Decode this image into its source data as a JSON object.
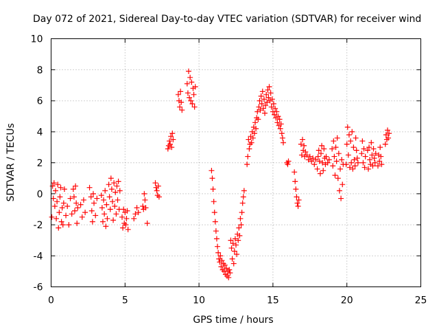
{
  "chart_data": {
    "type": "scatter",
    "title": "Day 072 of 2021, Sidereal Day-to-day VTEC variation (SDTVAR) for receiver wind",
    "xlabel": "GPS time / hours",
    "ylabel": "SDTVAR / TECUs",
    "xlim": [
      0,
      25
    ],
    "ylim": [
      -6,
      10
    ],
    "xticks": [
      "0",
      "5",
      "10",
      "15",
      "20",
      "25"
    ],
    "yticks": [
      "-6",
      "-4",
      "-2",
      "0",
      "2",
      "4",
      "6",
      "8",
      "10"
    ],
    "grid": true,
    "marker": "+",
    "series_color": "#ff0000",
    "series": [
      {
        "name": "SDTVAR",
        "points": [
          [
            0.05,
            -1.5
          ],
          [
            0.1,
            0.5
          ],
          [
            0.15,
            -0.3
          ],
          [
            0.2,
            0.7
          ],
          [
            0.25,
            -0.8
          ],
          [
            0.3,
            0.2
          ],
          [
            0.35,
            -1.6
          ],
          [
            0.4,
            -0.5
          ],
          [
            0.45,
            0.6
          ],
          [
            0.5,
            -2.2
          ],
          [
            0.55,
            -1.2
          ],
          [
            0.6,
            -0.2
          ],
          [
            0.65,
            0.4
          ],
          [
            0.7,
            -1.8
          ],
          [
            0.75,
            -0.9
          ],
          [
            0.8,
            -2.0
          ],
          [
            0.85,
            -0.6
          ],
          [
            0.9,
            0.3
          ],
          [
            1.0,
            -1.4
          ],
          [
            1.1,
            -0.8
          ],
          [
            1.2,
            -2.0
          ],
          [
            1.3,
            -0.3
          ],
          [
            1.4,
            -1.3
          ],
          [
            1.5,
            0.3
          ],
          [
            1.55,
            -0.2
          ],
          [
            1.6,
            -1.1
          ],
          [
            1.65,
            0.5
          ],
          [
            1.7,
            -0.6
          ],
          [
            1.75,
            -1.9
          ],
          [
            1.8,
            -0.9
          ],
          [
            2.0,
            -0.7
          ],
          [
            2.1,
            -1.5
          ],
          [
            2.2,
            -0.4
          ],
          [
            2.3,
            -1.2
          ],
          [
            2.6,
            0.4
          ],
          [
            2.7,
            -0.2
          ],
          [
            2.75,
            -1.1
          ],
          [
            2.8,
            -1.8
          ],
          [
            2.85,
            0.0
          ],
          [
            2.9,
            -0.6
          ],
          [
            3.0,
            -1.4
          ],
          [
            3.1,
            -0.3
          ],
          [
            3.4,
            -0.1
          ],
          [
            3.45,
            -0.9
          ],
          [
            3.5,
            -1.8
          ],
          [
            3.55,
            -0.4
          ],
          [
            3.6,
            -1.3
          ],
          [
            3.65,
            0.2
          ],
          [
            3.7,
            -2.1
          ],
          [
            3.75,
            -0.7
          ],
          [
            3.8,
            -1.6
          ],
          [
            3.9,
            0.6
          ],
          [
            3.95,
            -0.2
          ],
          [
            4.0,
            -1.0
          ],
          [
            4.05,
            1.0
          ],
          [
            4.1,
            0.3
          ],
          [
            4.15,
            -0.5
          ],
          [
            4.2,
            -1.7
          ],
          [
            4.25,
            0.7
          ],
          [
            4.3,
            -0.8
          ],
          [
            4.35,
            0.1
          ],
          [
            4.4,
            -1.3
          ],
          [
            4.45,
            0.5
          ],
          [
            4.5,
            -0.4
          ],
          [
            4.55,
            0.8
          ],
          [
            4.6,
            -1.0
          ],
          [
            4.65,
            0.2
          ],
          [
            4.8,
            -1.5
          ],
          [
            4.85,
            -2.2
          ],
          [
            4.9,
            -1.0
          ],
          [
            4.95,
            -1.9
          ],
          [
            5.0,
            -1.2
          ],
          [
            5.05,
            -2.0
          ],
          [
            5.1,
            -1.6
          ],
          [
            5.15,
            -1.1
          ],
          [
            5.2,
            -2.3
          ],
          [
            5.6,
            -1.6
          ],
          [
            5.7,
            -1.3
          ],
          [
            5.8,
            -0.9
          ],
          [
            5.9,
            -1.2
          ],
          [
            6.2,
            -0.8
          ],
          [
            6.25,
            -1.0
          ],
          [
            6.3,
            0.0
          ],
          [
            6.35,
            -0.4
          ],
          [
            6.4,
            -0.9
          ],
          [
            6.5,
            -1.9
          ],
          [
            7.05,
            0.7
          ],
          [
            7.1,
            0.4
          ],
          [
            7.15,
            0.2
          ],
          [
            7.2,
            -0.1
          ],
          [
            7.25,
            0.5
          ],
          [
            7.3,
            -0.2
          ],
          [
            7.9,
            2.9
          ],
          [
            7.95,
            3.1
          ],
          [
            8.0,
            3.4
          ],
          [
            8.05,
            3.2
          ],
          [
            8.1,
            3.7
          ],
          [
            8.15,
            3.0
          ],
          [
            8.2,
            3.9
          ],
          [
            8.25,
            3.5
          ],
          [
            8.6,
            6.4
          ],
          [
            8.65,
            6.0
          ],
          [
            8.7,
            5.6
          ],
          [
            8.75,
            6.6
          ],
          [
            8.8,
            5.9
          ],
          [
            8.85,
            5.4
          ],
          [
            9.2,
            7.1
          ],
          [
            9.25,
            6.5
          ],
          [
            9.3,
            7.9
          ],
          [
            9.35,
            6.2
          ],
          [
            9.4,
            7.5
          ],
          [
            9.45,
            6.0
          ],
          [
            9.5,
            7.2
          ],
          [
            9.55,
            5.8
          ],
          [
            9.6,
            6.8
          ],
          [
            9.65,
            6.4
          ],
          [
            9.7,
            5.6
          ],
          [
            9.75,
            6.9
          ],
          [
            10.85,
            1.5
          ],
          [
            10.9,
            1.0
          ],
          [
            10.95,
            0.3
          ],
          [
            11.0,
            -0.5
          ],
          [
            11.05,
            -1.2
          ],
          [
            11.1,
            -1.8
          ],
          [
            11.15,
            -2.4
          ],
          [
            11.2,
            -2.9
          ],
          [
            11.25,
            -3.4
          ],
          [
            11.3,
            -3.8
          ],
          [
            11.35,
            -4.2
          ],
          [
            11.4,
            -4.4
          ],
          [
            11.45,
            -4.0
          ],
          [
            11.5,
            -4.7
          ],
          [
            11.55,
            -4.3
          ],
          [
            11.6,
            -4.9
          ],
          [
            11.65,
            -4.5
          ],
          [
            11.7,
            -5.0
          ],
          [
            11.75,
            -4.6
          ],
          [
            11.8,
            -5.2
          ],
          [
            11.85,
            -4.8
          ],
          [
            11.9,
            -5.3
          ],
          [
            11.95,
            -5.0
          ],
          [
            12.0,
            -5.4
          ],
          [
            12.05,
            -4.9
          ],
          [
            12.1,
            -5.1
          ],
          [
            12.15,
            -3.0
          ],
          [
            12.2,
            -3.5
          ],
          [
            12.25,
            -4.2
          ],
          [
            12.3,
            -3.2
          ],
          [
            12.35,
            -4.5
          ],
          [
            12.4,
            -3.7
          ],
          [
            12.45,
            -2.9
          ],
          [
            12.5,
            -3.3
          ],
          [
            12.55,
            -3.9
          ],
          [
            12.6,
            -2.6
          ],
          [
            12.65,
            -3.0
          ],
          [
            12.7,
            -2.2
          ],
          [
            12.75,
            -2.7
          ],
          [
            12.8,
            -1.6
          ],
          [
            12.85,
            -2.0
          ],
          [
            12.9,
            -1.2
          ],
          [
            12.95,
            -0.6
          ],
          [
            13.0,
            -0.2
          ],
          [
            13.05,
            0.2
          ],
          [
            13.25,
            1.9
          ],
          [
            13.3,
            2.4
          ],
          [
            13.35,
            3.5
          ],
          [
            13.4,
            2.9
          ],
          [
            13.45,
            3.2
          ],
          [
            13.5,
            3.7
          ],
          [
            13.55,
            3.3
          ],
          [
            13.6,
            4.0
          ],
          [
            13.65,
            3.6
          ],
          [
            13.7,
            4.3
          ],
          [
            13.75,
            3.9
          ],
          [
            13.8,
            4.6
          ],
          [
            13.85,
            4.2
          ],
          [
            13.9,
            4.9
          ],
          [
            13.95,
            5.3
          ],
          [
            14.0,
            4.8
          ],
          [
            14.05,
            5.6
          ],
          [
            14.1,
            6.0
          ],
          [
            14.15,
            5.4
          ],
          [
            14.2,
            6.3
          ],
          [
            14.25,
            5.8
          ],
          [
            14.3,
            6.6
          ],
          [
            14.35,
            5.5
          ],
          [
            14.4,
            6.1
          ],
          [
            14.45,
            5.2
          ],
          [
            14.5,
            5.7
          ],
          [
            14.55,
            6.4
          ],
          [
            14.6,
            5.9
          ],
          [
            14.65,
            6.7
          ],
          [
            14.7,
            6.2
          ],
          [
            14.75,
            6.9
          ],
          [
            14.8,
            6.0
          ],
          [
            14.85,
            6.5
          ],
          [
            14.9,
            5.6
          ],
          [
            14.95,
            6.1
          ],
          [
            15.0,
            5.3
          ],
          [
            15.05,
            5.8
          ],
          [
            15.1,
            5.1
          ],
          [
            15.15,
            5.5
          ],
          [
            15.2,
            4.9
          ],
          [
            15.25,
            5.3
          ],
          [
            15.3,
            4.6
          ],
          [
            15.35,
            5.0
          ],
          [
            15.4,
            4.4
          ],
          [
            15.45,
            4.8
          ],
          [
            15.5,
            4.2
          ],
          [
            15.55,
            4.5
          ],
          [
            15.6,
            3.9
          ],
          [
            15.65,
            3.6
          ],
          [
            15.7,
            3.3
          ],
          [
            15.95,
            2.0
          ],
          [
            16.0,
            1.9
          ],
          [
            16.05,
            2.1
          ],
          [
            16.45,
            1.4
          ],
          [
            16.5,
            0.8
          ],
          [
            16.55,
            0.3
          ],
          [
            16.6,
            -0.2
          ],
          [
            16.65,
            -0.6
          ],
          [
            16.7,
            -0.8
          ],
          [
            16.75,
            -0.4
          ],
          [
            16.9,
            3.2
          ],
          [
            16.95,
            2.5
          ],
          [
            17.0,
            3.5
          ],
          [
            17.05,
            2.8
          ],
          [
            17.1,
            3.1
          ],
          [
            17.15,
            2.4
          ],
          [
            17.2,
            2.7
          ],
          [
            17.3,
            2.5
          ],
          [
            17.4,
            2.2
          ],
          [
            17.5,
            2.4
          ],
          [
            17.6,
            2.1
          ],
          [
            17.7,
            2.3
          ],
          [
            17.8,
            1.9
          ],
          [
            17.9,
            2.2
          ],
          [
            18.0,
            1.6
          ],
          [
            18.05,
            2.4
          ],
          [
            18.1,
            2.8
          ],
          [
            18.15,
            2.1
          ],
          [
            18.2,
            1.3
          ],
          [
            18.25,
            2.6
          ],
          [
            18.3,
            3.1
          ],
          [
            18.35,
            2.0
          ],
          [
            18.4,
            1.5
          ],
          [
            18.45,
            2.9
          ],
          [
            18.5,
            2.3
          ],
          [
            18.55,
            1.9
          ],
          [
            18.6,
            2.4
          ],
          [
            18.7,
            2.0
          ],
          [
            18.8,
            2.2
          ],
          [
            19.0,
            2.9
          ],
          [
            19.05,
            1.8
          ],
          [
            19.1,
            3.4
          ],
          [
            19.15,
            2.4
          ],
          [
            19.2,
            1.2
          ],
          [
            19.25,
            3.0
          ],
          [
            19.3,
            2.1
          ],
          [
            19.35,
            3.6
          ],
          [
            19.4,
            1.0
          ],
          [
            19.45,
            2.6
          ],
          [
            19.5,
            0.2
          ],
          [
            19.55,
            1.6
          ],
          [
            19.6,
            -0.3
          ],
          [
            19.65,
            2.2
          ],
          [
            19.7,
            0.6
          ],
          [
            19.75,
            1.9
          ],
          [
            19.95,
            1.9
          ],
          [
            20.0,
            3.2
          ],
          [
            20.05,
            4.3
          ],
          [
            20.1,
            2.5
          ],
          [
            20.15,
            3.8
          ],
          [
            20.2,
            1.7
          ],
          [
            20.25,
            3.4
          ],
          [
            20.3,
            2.0
          ],
          [
            20.35,
            4.0
          ],
          [
            20.4,
            1.6
          ],
          [
            20.45,
            3.0
          ],
          [
            20.5,
            2.2
          ],
          [
            20.55,
            1.8
          ],
          [
            20.6,
            3.6
          ],
          [
            20.65,
            2.8
          ],
          [
            20.7,
            2.3
          ],
          [
            20.75,
            2.0
          ],
          [
            21.0,
            2.6
          ],
          [
            21.05,
            3.4
          ],
          [
            21.1,
            2.0
          ],
          [
            21.15,
            2.9
          ],
          [
            21.2,
            1.7
          ],
          [
            21.25,
            2.4
          ],
          [
            21.4,
            2.8
          ],
          [
            21.45,
            1.6
          ],
          [
            21.5,
            3.0
          ],
          [
            21.55,
            2.2
          ],
          [
            21.6,
            1.9
          ],
          [
            21.65,
            3.3
          ],
          [
            21.7,
            2.5
          ],
          [
            21.75,
            1.8
          ],
          [
            21.8,
            2.9
          ],
          [
            21.85,
            2.3
          ],
          [
            21.9,
            2.0
          ],
          [
            21.95,
            2.6
          ],
          [
            22.1,
            1.8
          ],
          [
            22.15,
            2.5
          ],
          [
            22.2,
            2.1
          ],
          [
            22.25,
            3.0
          ],
          [
            22.3,
            2.4
          ],
          [
            22.35,
            1.9
          ],
          [
            22.6,
            3.2
          ],
          [
            22.65,
            3.8
          ],
          [
            22.7,
            3.5
          ],
          [
            22.75,
            4.1
          ],
          [
            22.8,
            3.6
          ],
          [
            22.85,
            3.9
          ]
        ]
      }
    ]
  }
}
